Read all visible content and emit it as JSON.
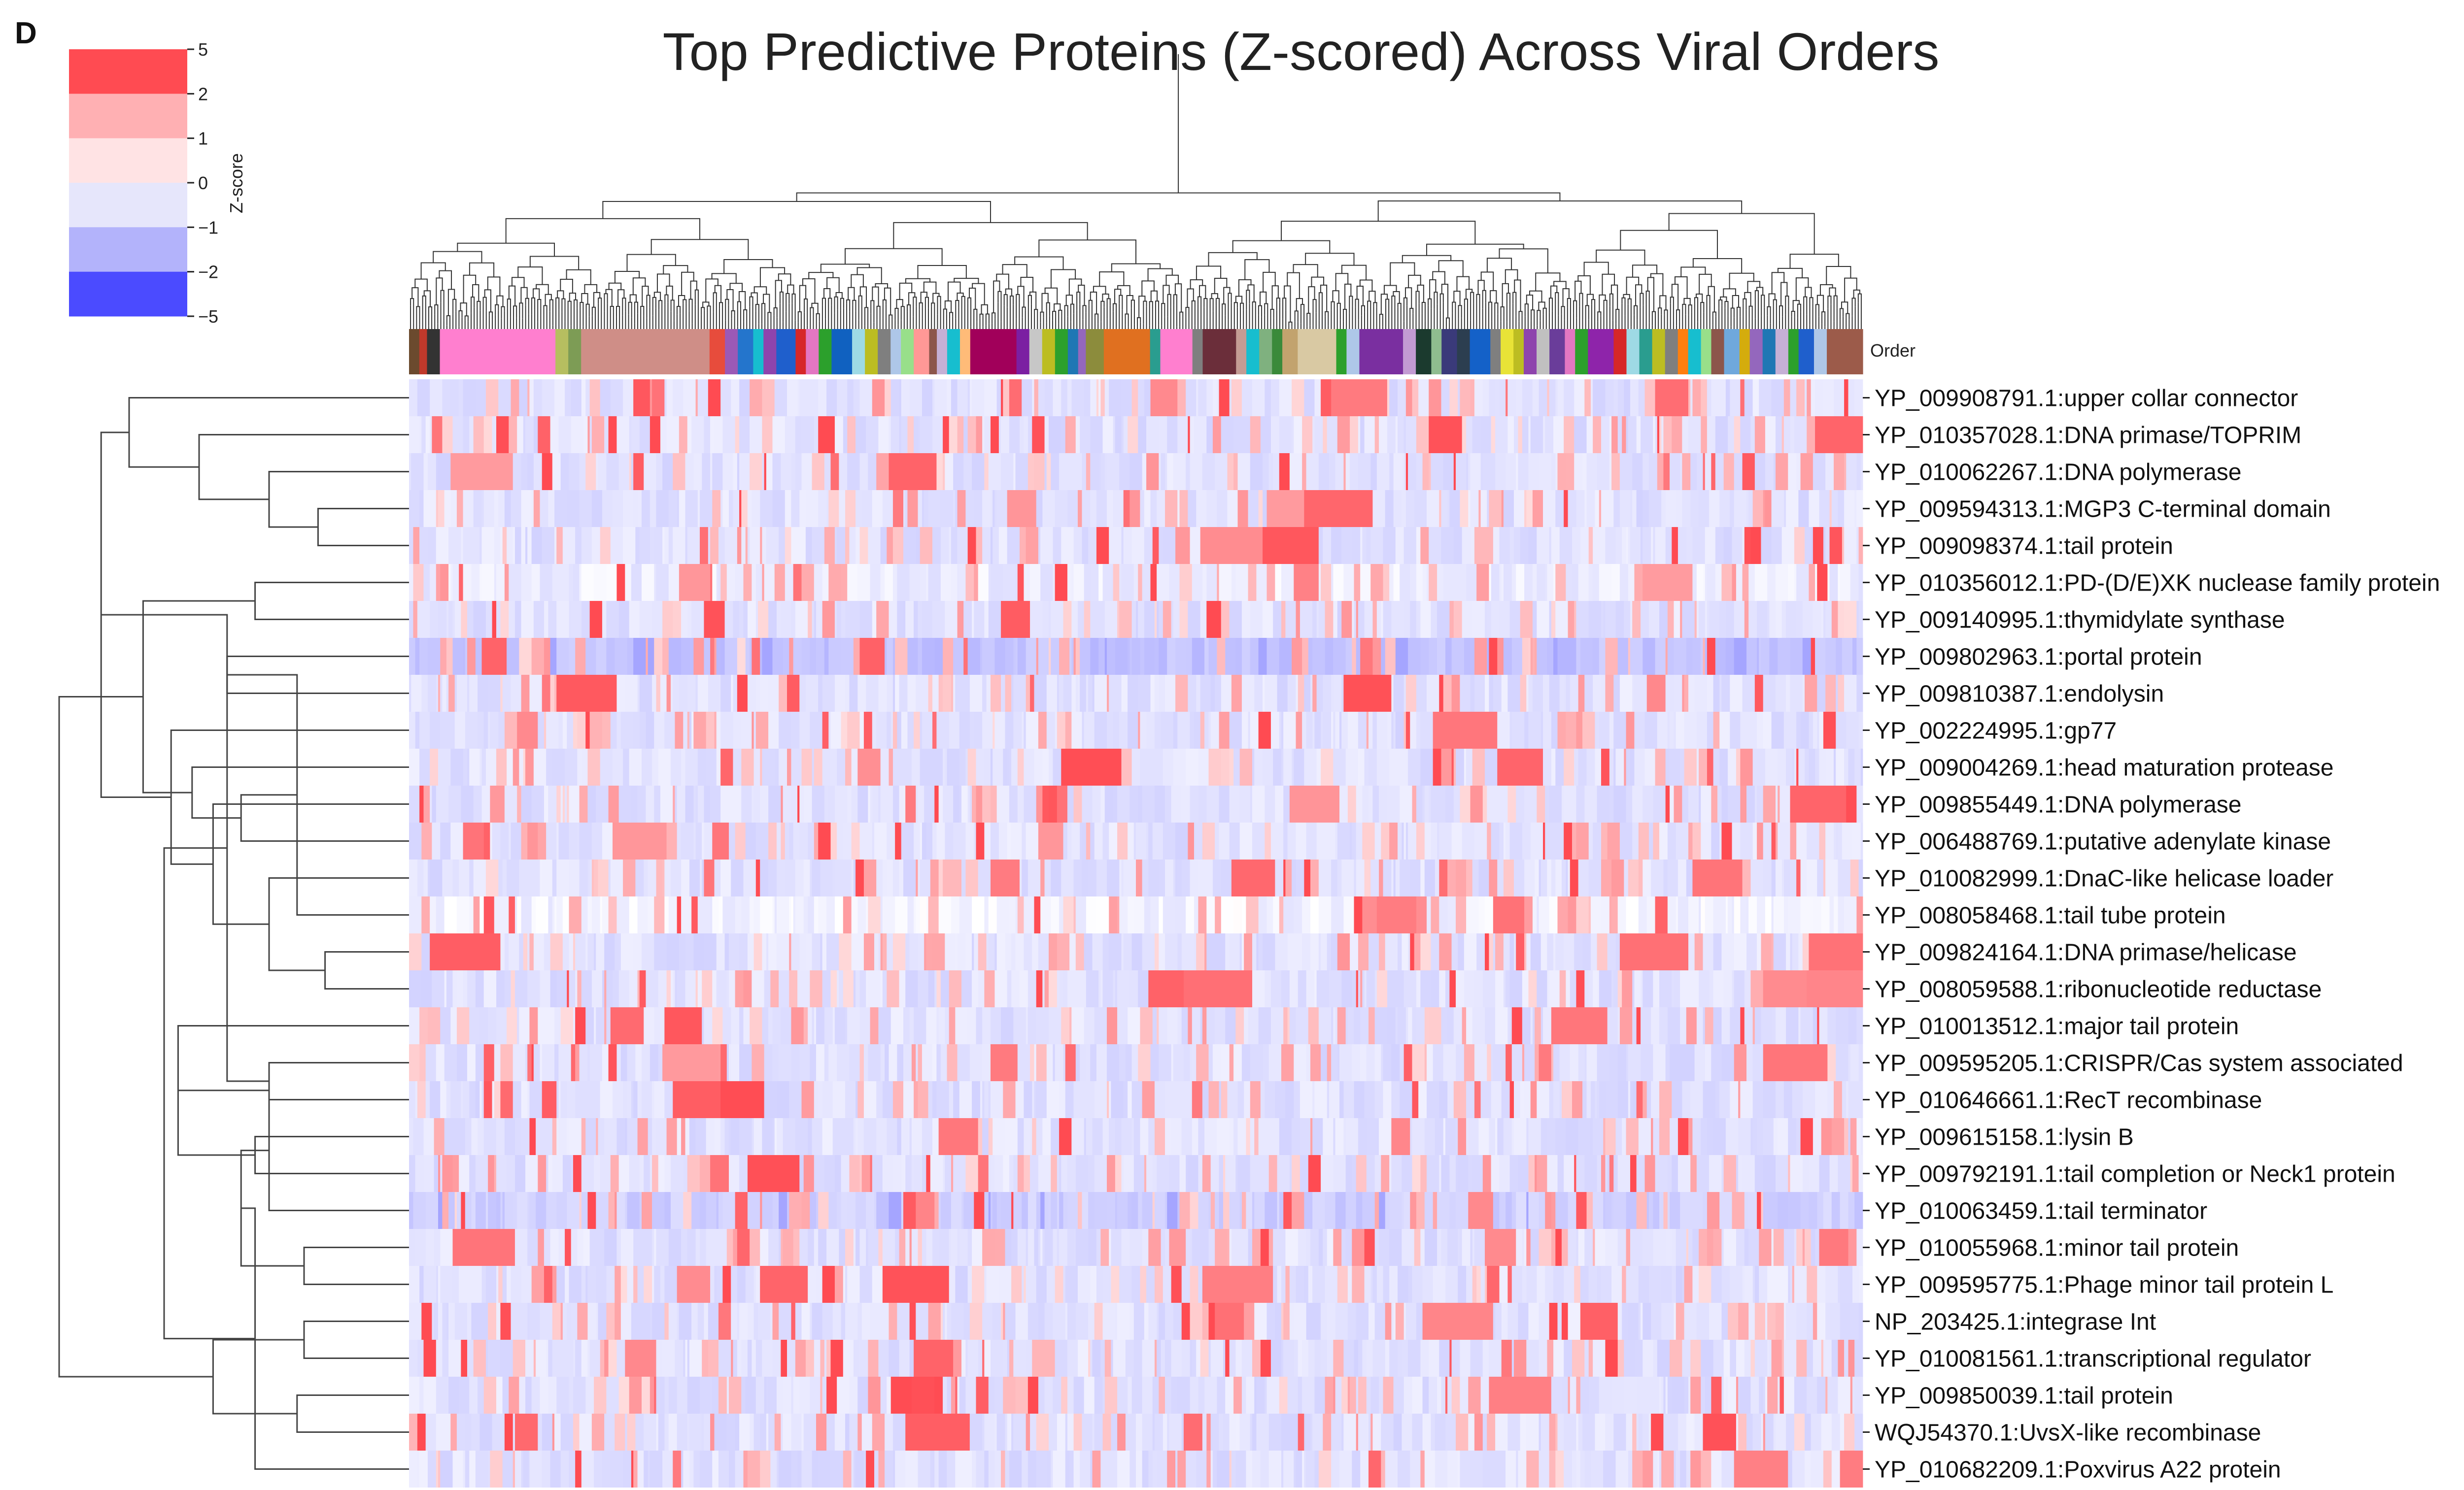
{
  "figure": {
    "panel_letter": "D"
  },
  "chart_data": {
    "type": "heatmap",
    "title": "Top Predictive Proteins (Z-scored) Across Viral Orders",
    "column_annotation_label": "Order",
    "colorbar": {
      "label": "Z-score",
      "ticks": [
        5,
        2,
        1,
        0,
        -1,
        -2,
        -5
      ],
      "tick_labels": [
        "5",
        "2",
        "1",
        "0",
        "−1",
        "−2",
        "−5"
      ],
      "bins": [
        {
          "range": [
            2,
            5
          ],
          "color": "#ff4b52"
        },
        {
          "range": [
            1,
            2
          ],
          "color": "#ffb0b3"
        },
        {
          "range": [
            0,
            1
          ],
          "color": "#ffe3e4"
        },
        {
          "range": [
            -1,
            0
          ],
          "color": "#e6e6fb"
        },
        {
          "range": [
            -2,
            -1
          ],
          "color": "#b3b3fb"
        },
        {
          "range": [
            -5,
            -2
          ],
          "color": "#4b4bff"
        }
      ]
    },
    "rows": [
      "YP_009908791.1:upper collar connector",
      "YP_010357028.1:DNA primase/TOPRIM",
      "YP_010062267.1:DNA polymerase",
      "YP_009594313.1:MGP3 C-terminal domain",
      "YP_009098374.1:tail protein",
      "YP_010356012.1:PD-(D/E)XK nuclease family protein",
      "YP_009140995.1:thymidylate synthase",
      "YP_009802963.1:portal protein",
      "YP_009810387.1:endolysin",
      "YP_002224995.1:gp77",
      "YP_009004269.1:head maturation protease",
      "YP_009855449.1:DNA polymerase",
      "YP_006488769.1:putative adenylate kinase",
      "YP_010082999.1:DnaC-like helicase loader",
      "YP_008058468.1:tail tube protein",
      "YP_009824164.1:DNA primase/helicase",
      "YP_008059588.1:ribonucleotide reductase",
      "YP_010013512.1:major tail protein",
      "YP_009595205.1:CRISPR/Cas system associated",
      "YP_010646661.1:RecT recombinase",
      "YP_009615158.1:lysin B",
      "YP_009792191.1:tail completion or Neck1 protein",
      "YP_010063459.1:tail terminator",
      "YP_010055968.1:minor tail protein",
      "YP_009595775.1:Phage minor tail protein L",
      "NP_203425.1:integrase Int",
      "YP_010081561.1:transcriptional regulator",
      "YP_009850039.1:tail protein",
      "WQJ54370.1:UvsX-like recombinase",
      "YP_010682209.1:Poxvirus A22 protein"
    ],
    "row_baseline_zscore": [
      -0.5,
      -0.5,
      -0.5,
      -0.5,
      -0.5,
      -0.3,
      -0.5,
      -1.0,
      -0.5,
      -0.5,
      -0.5,
      -0.5,
      -0.5,
      -0.5,
      -0.2,
      -0.5,
      -0.5,
      -0.5,
      -0.5,
      -0.5,
      -0.5,
      -0.5,
      -0.8,
      -0.5,
      -0.5,
      -0.5,
      -0.5,
      -0.5,
      -0.5,
      -0.5
    ],
    "row_dendrogram_linkage": [
      [
        4,
        3,
        1.3
      ],
      [
        30,
        2,
        2.0
      ],
      [
        31,
        1,
        3.0
      ],
      [
        32,
        0,
        4.0
      ],
      [
        5,
        6,
        2.2
      ],
      [
        7,
        8,
        2.6
      ],
      [
        15,
        16,
        1.2
      ],
      [
        14,
        35,
        1.6
      ],
      [
        13,
        36,
        2.0
      ],
      [
        12,
        37,
        2.4
      ],
      [
        11,
        38,
        2.8
      ],
      [
        10,
        39,
        3.1
      ],
      [
        9,
        40,
        3.4
      ],
      [
        34,
        41,
        3.8
      ],
      [
        33,
        42,
        4.4
      ],
      [
        18,
        19,
        2.0
      ],
      [
        20,
        21,
        2.2
      ],
      [
        44,
        45,
        2.6
      ],
      [
        17,
        46,
        3.3
      ],
      [
        23,
        24,
        1.5
      ],
      [
        22,
        48,
        2.0
      ],
      [
        25,
        26,
        1.5
      ],
      [
        49,
        50,
        2.4
      ],
      [
        27,
        28,
        1.6
      ],
      [
        52,
        29,
        2.2
      ],
      [
        51,
        53,
        2.8
      ],
      [
        47,
        54,
        3.5
      ],
      [
        43,
        55,
        5.0
      ]
    ],
    "order_annotation_blocks": [
      {
        "width": 0.8,
        "color": "#6b4a2e"
      },
      {
        "width": 0.6,
        "color": "#c0392b"
      },
      {
        "width": 1.0,
        "color": "#333333"
      },
      {
        "width": 9.0,
        "color": "#ff7fcf"
      },
      {
        "width": 1.0,
        "color": "#b6be60"
      },
      {
        "width": 1.0,
        "color": "#7d9c55"
      },
      {
        "width": 10.0,
        "color": "#cf8e87"
      },
      {
        "width": 1.2,
        "color": "#e74c3c"
      },
      {
        "width": 1.0,
        "color": "#9b59b6"
      },
      {
        "width": 1.2,
        "color": "#2475cc"
      },
      {
        "width": 0.8,
        "color": "#17becf"
      },
      {
        "width": 1.0,
        "color": "#8e44ad"
      },
      {
        "width": 1.5,
        "color": "#1f5fcc"
      },
      {
        "width": 0.8,
        "color": "#d62728"
      },
      {
        "width": 1.0,
        "color": "#e377c2"
      },
      {
        "width": 1.0,
        "color": "#2ca02c"
      },
      {
        "width": 1.6,
        "color": "#1061c0"
      },
      {
        "width": 1.0,
        "color": "#9edae5"
      },
      {
        "width": 1.0,
        "color": "#bcbd22"
      },
      {
        "width": 1.0,
        "color": "#7f7f7f"
      },
      {
        "width": 0.8,
        "color": "#aec7e8"
      },
      {
        "width": 1.0,
        "color": "#98df8a"
      },
      {
        "width": 1.2,
        "color": "#ff9896"
      },
      {
        "width": 0.6,
        "color": "#8c564b"
      },
      {
        "width": 0.8,
        "color": "#c5b0d5"
      },
      {
        "width": 1.0,
        "color": "#17becf"
      },
      {
        "width": 0.8,
        "color": "#ffbb78"
      },
      {
        "width": 3.6,
        "color": "#a1005a"
      },
      {
        "width": 1.0,
        "color": "#7b1fa2"
      },
      {
        "width": 1.0,
        "color": "#c7c7c7"
      },
      {
        "width": 1.0,
        "color": "#bcbd22"
      },
      {
        "width": 1.0,
        "color": "#2ca02c"
      },
      {
        "width": 0.8,
        "color": "#1f77b4"
      },
      {
        "width": 0.6,
        "color": "#9467bd"
      },
      {
        "width": 1.4,
        "color": "#8c8c3c"
      },
      {
        "width": 3.6,
        "color": "#e07020"
      },
      {
        "width": 0.8,
        "color": "#2a9d8f"
      },
      {
        "width": 2.5,
        "color": "#ff7fcf"
      },
      {
        "width": 0.8,
        "color": "#7f7f7f"
      },
      {
        "width": 2.6,
        "color": "#6b2e3a"
      },
      {
        "width": 0.8,
        "color": "#c49c94"
      },
      {
        "width": 1.0,
        "color": "#17becf"
      },
      {
        "width": 1.0,
        "color": "#7fb17f"
      },
      {
        "width": 0.8,
        "color": "#3a8a3a"
      },
      {
        "width": 1.2,
        "color": "#c2a36e"
      },
      {
        "width": 3.0,
        "color": "#d9c9a3"
      },
      {
        "width": 0.8,
        "color": "#2ca02c"
      },
      {
        "width": 1.0,
        "color": "#aec7e8"
      },
      {
        "width": 3.4,
        "color": "#7a2fa0"
      },
      {
        "width": 1.0,
        "color": "#c39bd3"
      },
      {
        "width": 1.2,
        "color": "#1b3a2e"
      },
      {
        "width": 0.8,
        "color": "#8fbc8f"
      },
      {
        "width": 1.2,
        "color": "#3a3a7a"
      },
      {
        "width": 1.0,
        "color": "#2c3e50"
      },
      {
        "width": 1.6,
        "color": "#1461c8"
      },
      {
        "width": 0.8,
        "color": "#7f7f7f"
      },
      {
        "width": 1.0,
        "color": "#e8e337"
      },
      {
        "width": 0.8,
        "color": "#bcbd22"
      },
      {
        "width": 1.0,
        "color": "#8e44ad"
      },
      {
        "width": 1.0,
        "color": "#c0c0c0"
      },
      {
        "width": 1.2,
        "color": "#6a3d9a"
      },
      {
        "width": 0.8,
        "color": "#e377c2"
      },
      {
        "width": 1.0,
        "color": "#2ca02c"
      },
      {
        "width": 2.0,
        "color": "#8e24aa"
      },
      {
        "width": 1.0,
        "color": "#d62728"
      },
      {
        "width": 1.0,
        "color": "#9edae5"
      },
      {
        "width": 1.0,
        "color": "#2a9d8f"
      },
      {
        "width": 1.0,
        "color": "#bcbd22"
      },
      {
        "width": 1.0,
        "color": "#7f7f7f"
      },
      {
        "width": 0.8,
        "color": "#ff7f0e"
      },
      {
        "width": 1.0,
        "color": "#17becf"
      },
      {
        "width": 0.8,
        "color": "#98df8a"
      },
      {
        "width": 1.0,
        "color": "#8c564b"
      },
      {
        "width": 1.2,
        "color": "#6fa8dc"
      },
      {
        "width": 0.8,
        "color": "#d4ac0d"
      },
      {
        "width": 1.0,
        "color": "#9467bd"
      },
      {
        "width": 1.0,
        "color": "#1f77b4"
      },
      {
        "width": 1.0,
        "color": "#c5b0d5"
      },
      {
        "width": 0.8,
        "color": "#2ca02c"
      },
      {
        "width": 1.2,
        "color": "#1f5fcc"
      },
      {
        "width": 1.0,
        "color": "#aec7e8"
      },
      {
        "width": 2.8,
        "color": "#9c5b4a"
      }
    ]
  }
}
